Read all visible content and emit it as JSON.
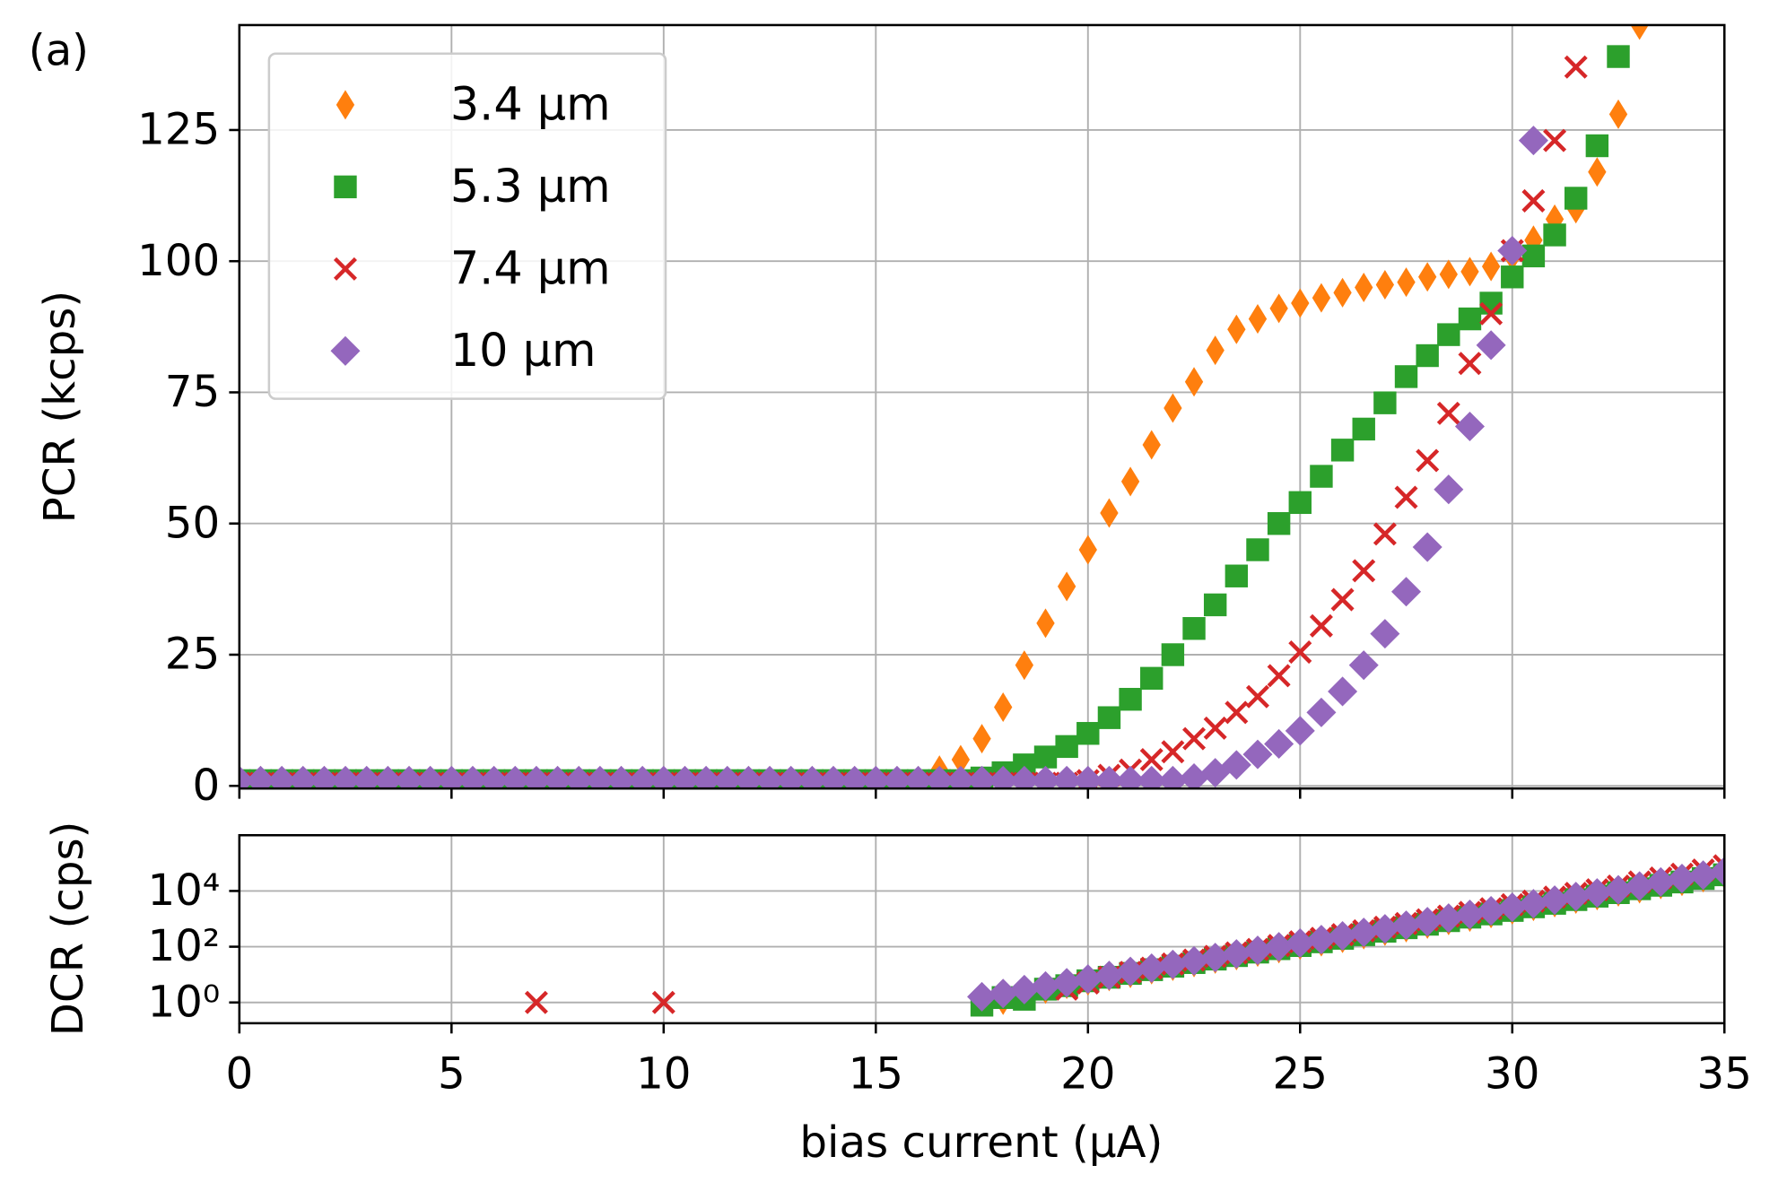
{
  "chart_data": [
    {
      "type": "scatter",
      "title": "(a)",
      "ylabel": "PCR (kcps)",
      "x": [
        0,
        0.5,
        1,
        1.5,
        2,
        2.5,
        3,
        3.5,
        4,
        4.5,
        5,
        5.5,
        6,
        6.5,
        7,
        7.5,
        8,
        8.5,
        9,
        9.5,
        10,
        10.5,
        11,
        11.5,
        12,
        12.5,
        13,
        13.5,
        14,
        14.5,
        15,
        15.5,
        16,
        16.5,
        17,
        17.5,
        18,
        18.5,
        19,
        19.5,
        20,
        20.5,
        21,
        21.5,
        22,
        22.5,
        23,
        23.5,
        24,
        24.5,
        25,
        25.5,
        26,
        26.5,
        27,
        27.5,
        28,
        28.5,
        29,
        29.5,
        30,
        30.5,
        31,
        31.5,
        32,
        32.5,
        33,
        33.5,
        34,
        34.5,
        35
      ],
      "xlim": [
        0,
        35
      ],
      "ylim": [
        -0.5,
        145
      ],
      "yticks": [
        0,
        25,
        50,
        75,
        100,
        125
      ],
      "grid": true,
      "legend": "upper left",
      "series": [
        {
          "name": "3.4 μm",
          "color": "#ff7f0e",
          "marker": "thin_diamond",
          "values": [
            1,
            1,
            1,
            1,
            1,
            1,
            1,
            1,
            1,
            1,
            1,
            1,
            1,
            1,
            1,
            1,
            1,
            1,
            1,
            1,
            1,
            1,
            1,
            1,
            1,
            1,
            1,
            1,
            1,
            1,
            1,
            1,
            1,
            3,
            5,
            9,
            15,
            23,
            31,
            38,
            45,
            52,
            58,
            65,
            72,
            77,
            83,
            87,
            89,
            91,
            92,
            93,
            94,
            95,
            95.5,
            96,
            97,
            97.5,
            98,
            99,
            101,
            104,
            108,
            110,
            117,
            128,
            145,
            null,
            null,
            null,
            null
          ]
        },
        {
          "name": "5.3 μm",
          "color": "#2ca02c",
          "marker": "square",
          "values": [
            1,
            1,
            1,
            1,
            1,
            1,
            1,
            1,
            1,
            1,
            1,
            1,
            1,
            1,
            1,
            1,
            1,
            1,
            1,
            1,
            1,
            1,
            1,
            1,
            1,
            1,
            1,
            1,
            1,
            1,
            1,
            1,
            1,
            1,
            1,
            1.5,
            2.5,
            4,
            5.5,
            7.5,
            10,
            13,
            16.5,
            20.5,
            25,
            30,
            34.5,
            40,
            45,
            50,
            54,
            59,
            64,
            68,
            73,
            78,
            82,
            86,
            89,
            92,
            97,
            101,
            105,
            112,
            122,
            139,
            null,
            null,
            null,
            null,
            null
          ]
        },
        {
          "name": "7.4 μm",
          "color": "#d62728",
          "marker": "x",
          "values": [
            0.5,
            0.5,
            0.5,
            0.5,
            0.5,
            0.5,
            0.5,
            0.5,
            0.5,
            0.5,
            0.5,
            0.5,
            0.5,
            0.5,
            0.5,
            0.5,
            0.5,
            0.5,
            0.5,
            0.5,
            0.5,
            0.5,
            0.5,
            0.5,
            0.5,
            0.5,
            0.5,
            0.5,
            0.5,
            0.5,
            0.5,
            0.5,
            0.5,
            0.5,
            0.5,
            0.5,
            0.5,
            0.5,
            0.5,
            0.5,
            1,
            2,
            3,
            5,
            6.5,
            9,
            11,
            14,
            17,
            21,
            25.5,
            30.5,
            35.5,
            41,
            48,
            55,
            62,
            71,
            80.5,
            90,
            102,
            111.5,
            123,
            137,
            null,
            null,
            null,
            null,
            null,
            null,
            null
          ]
        },
        {
          "name": "10 μm",
          "color": "#9467bd",
          "marker": "diamond",
          "values": [
            1,
            1,
            1,
            1,
            1,
            1,
            1,
            1,
            1,
            1,
            1,
            1,
            1,
            1,
            1,
            1,
            1,
            1,
            1,
            1,
            1,
            1,
            1,
            1,
            1,
            1,
            1,
            1,
            1,
            1,
            1,
            1,
            1,
            1,
            1,
            1,
            1,
            1,
            1,
            1,
            1,
            1,
            1,
            1,
            1,
            1.5,
            2.5,
            4,
            6,
            8,
            10.5,
            14,
            18,
            23,
            29,
            37,
            45.5,
            56.5,
            68.5,
            84,
            102,
            123,
            null,
            null,
            null,
            null,
            null,
            null,
            null,
            null,
            null
          ]
        }
      ]
    },
    {
      "type": "scatter",
      "ylabel": "DCR (cps)",
      "xlabel": "bias current (μA)",
      "xlim": [
        0,
        35
      ],
      "xticks": [
        0,
        5,
        10,
        15,
        20,
        25,
        30,
        35
      ],
      "ylim": [
        0.18,
        1000000
      ],
      "yscale": "log",
      "yticks": [
        {
          "value": 1,
          "label": "10⁰"
        },
        {
          "value": 100,
          "label": "10²"
        },
        {
          "value": 10000,
          "label": "10⁴"
        }
      ],
      "grid": true,
      "series": [
        {
          "color": "#ff7f0e",
          "marker": "thin_diamond",
          "x": [
            18,
            18.5,
            19,
            19.5,
            20,
            20.5,
            21,
            21.5,
            22,
            22.5,
            23,
            23.5,
            24,
            24.5,
            25,
            25.5,
            26,
            26.5,
            27,
            27.5,
            28,
            28.5,
            29,
            29.5,
            30,
            30.5,
            31,
            31.5,
            32,
            32.5,
            33,
            33.5,
            34,
            34.5,
            35
          ],
          "values": [
            1.2,
            2,
            3,
            4.5,
            6,
            8.5,
            11,
            15,
            20,
            27,
            36,
            48,
            64,
            85,
            115,
            150,
            200,
            270,
            360,
            480,
            650,
            870,
            1150,
            1550,
            2100,
            2800,
            3800,
            5100,
            6800,
            9200,
            12000,
            17000,
            22000,
            30000,
            40000
          ]
        },
        {
          "color": "#2ca02c",
          "marker": "square",
          "x": [
            17.5,
            18,
            18.5,
            19,
            19.5,
            20,
            20.5,
            21,
            21.5,
            22,
            22.5,
            23,
            23.5,
            24,
            24.5,
            25,
            25.5,
            26,
            26.5,
            27,
            27.5,
            28,
            28.5,
            29,
            29.5,
            30,
            30.5,
            31,
            31.5,
            32,
            32.5,
            33,
            33.5,
            34,
            34.5,
            35
          ],
          "values": [
            0.8,
            1.5,
            1.3,
            3,
            4,
            6,
            8,
            11,
            15,
            20,
            27,
            36,
            48,
            64,
            85,
            110,
            150,
            200,
            270,
            360,
            480,
            640,
            860,
            1150,
            1500,
            2000,
            2700,
            3600,
            4900,
            6500,
            8700,
            12000,
            16000,
            21000,
            28000,
            38000
          ]
        },
        {
          "color": "#d62728",
          "marker": "x",
          "x": [
            7,
            10,
            19.5,
            20,
            20.5,
            21,
            21.5,
            22,
            22.5,
            23,
            23.5,
            24,
            24.5,
            25,
            25.5,
            26,
            26.5,
            27,
            27.5,
            28,
            28.5,
            29,
            29.5,
            30,
            30.5,
            31,
            31.5,
            32,
            32.5,
            33,
            33.5,
            34,
            34.5,
            35
          ],
          "values": [
            1,
            1,
            3,
            5,
            8,
            12,
            17,
            24,
            33,
            45,
            60,
            80,
            110,
            150,
            200,
            270,
            370,
            500,
            680,
            920,
            1250,
            1700,
            2300,
            3200,
            4300,
            6000,
            8200,
            11000,
            15000,
            21000,
            29000,
            40000,
            56000,
            80000
          ]
        },
        {
          "color": "#9467bd",
          "marker": "diamond",
          "x": [
            17.5,
            18,
            18.5,
            19,
            19.5,
            20,
            20.5,
            21,
            21.5,
            22,
            22.5,
            23,
            23.5,
            24,
            24.5,
            25,
            25.5,
            26,
            26.5,
            27,
            27.5,
            28,
            28.5,
            29,
            29.5,
            30,
            30.5,
            31,
            31.5,
            32,
            32.5,
            33,
            33.5,
            34,
            34.5,
            35
          ],
          "values": [
            1.6,
            2.1,
            2.9,
            3.9,
            5.1,
            6.9,
            9.3,
            13,
            17,
            23,
            31,
            41,
            55,
            74,
            100,
            135,
            180,
            245,
            325,
            440,
            590,
            790,
            1070,
            1440,
            1940,
            2600,
            3500,
            4700,
            6300,
            8500,
            11000,
            15000,
            21000,
            28000,
            37000,
            50000
          ]
        }
      ]
    }
  ]
}
